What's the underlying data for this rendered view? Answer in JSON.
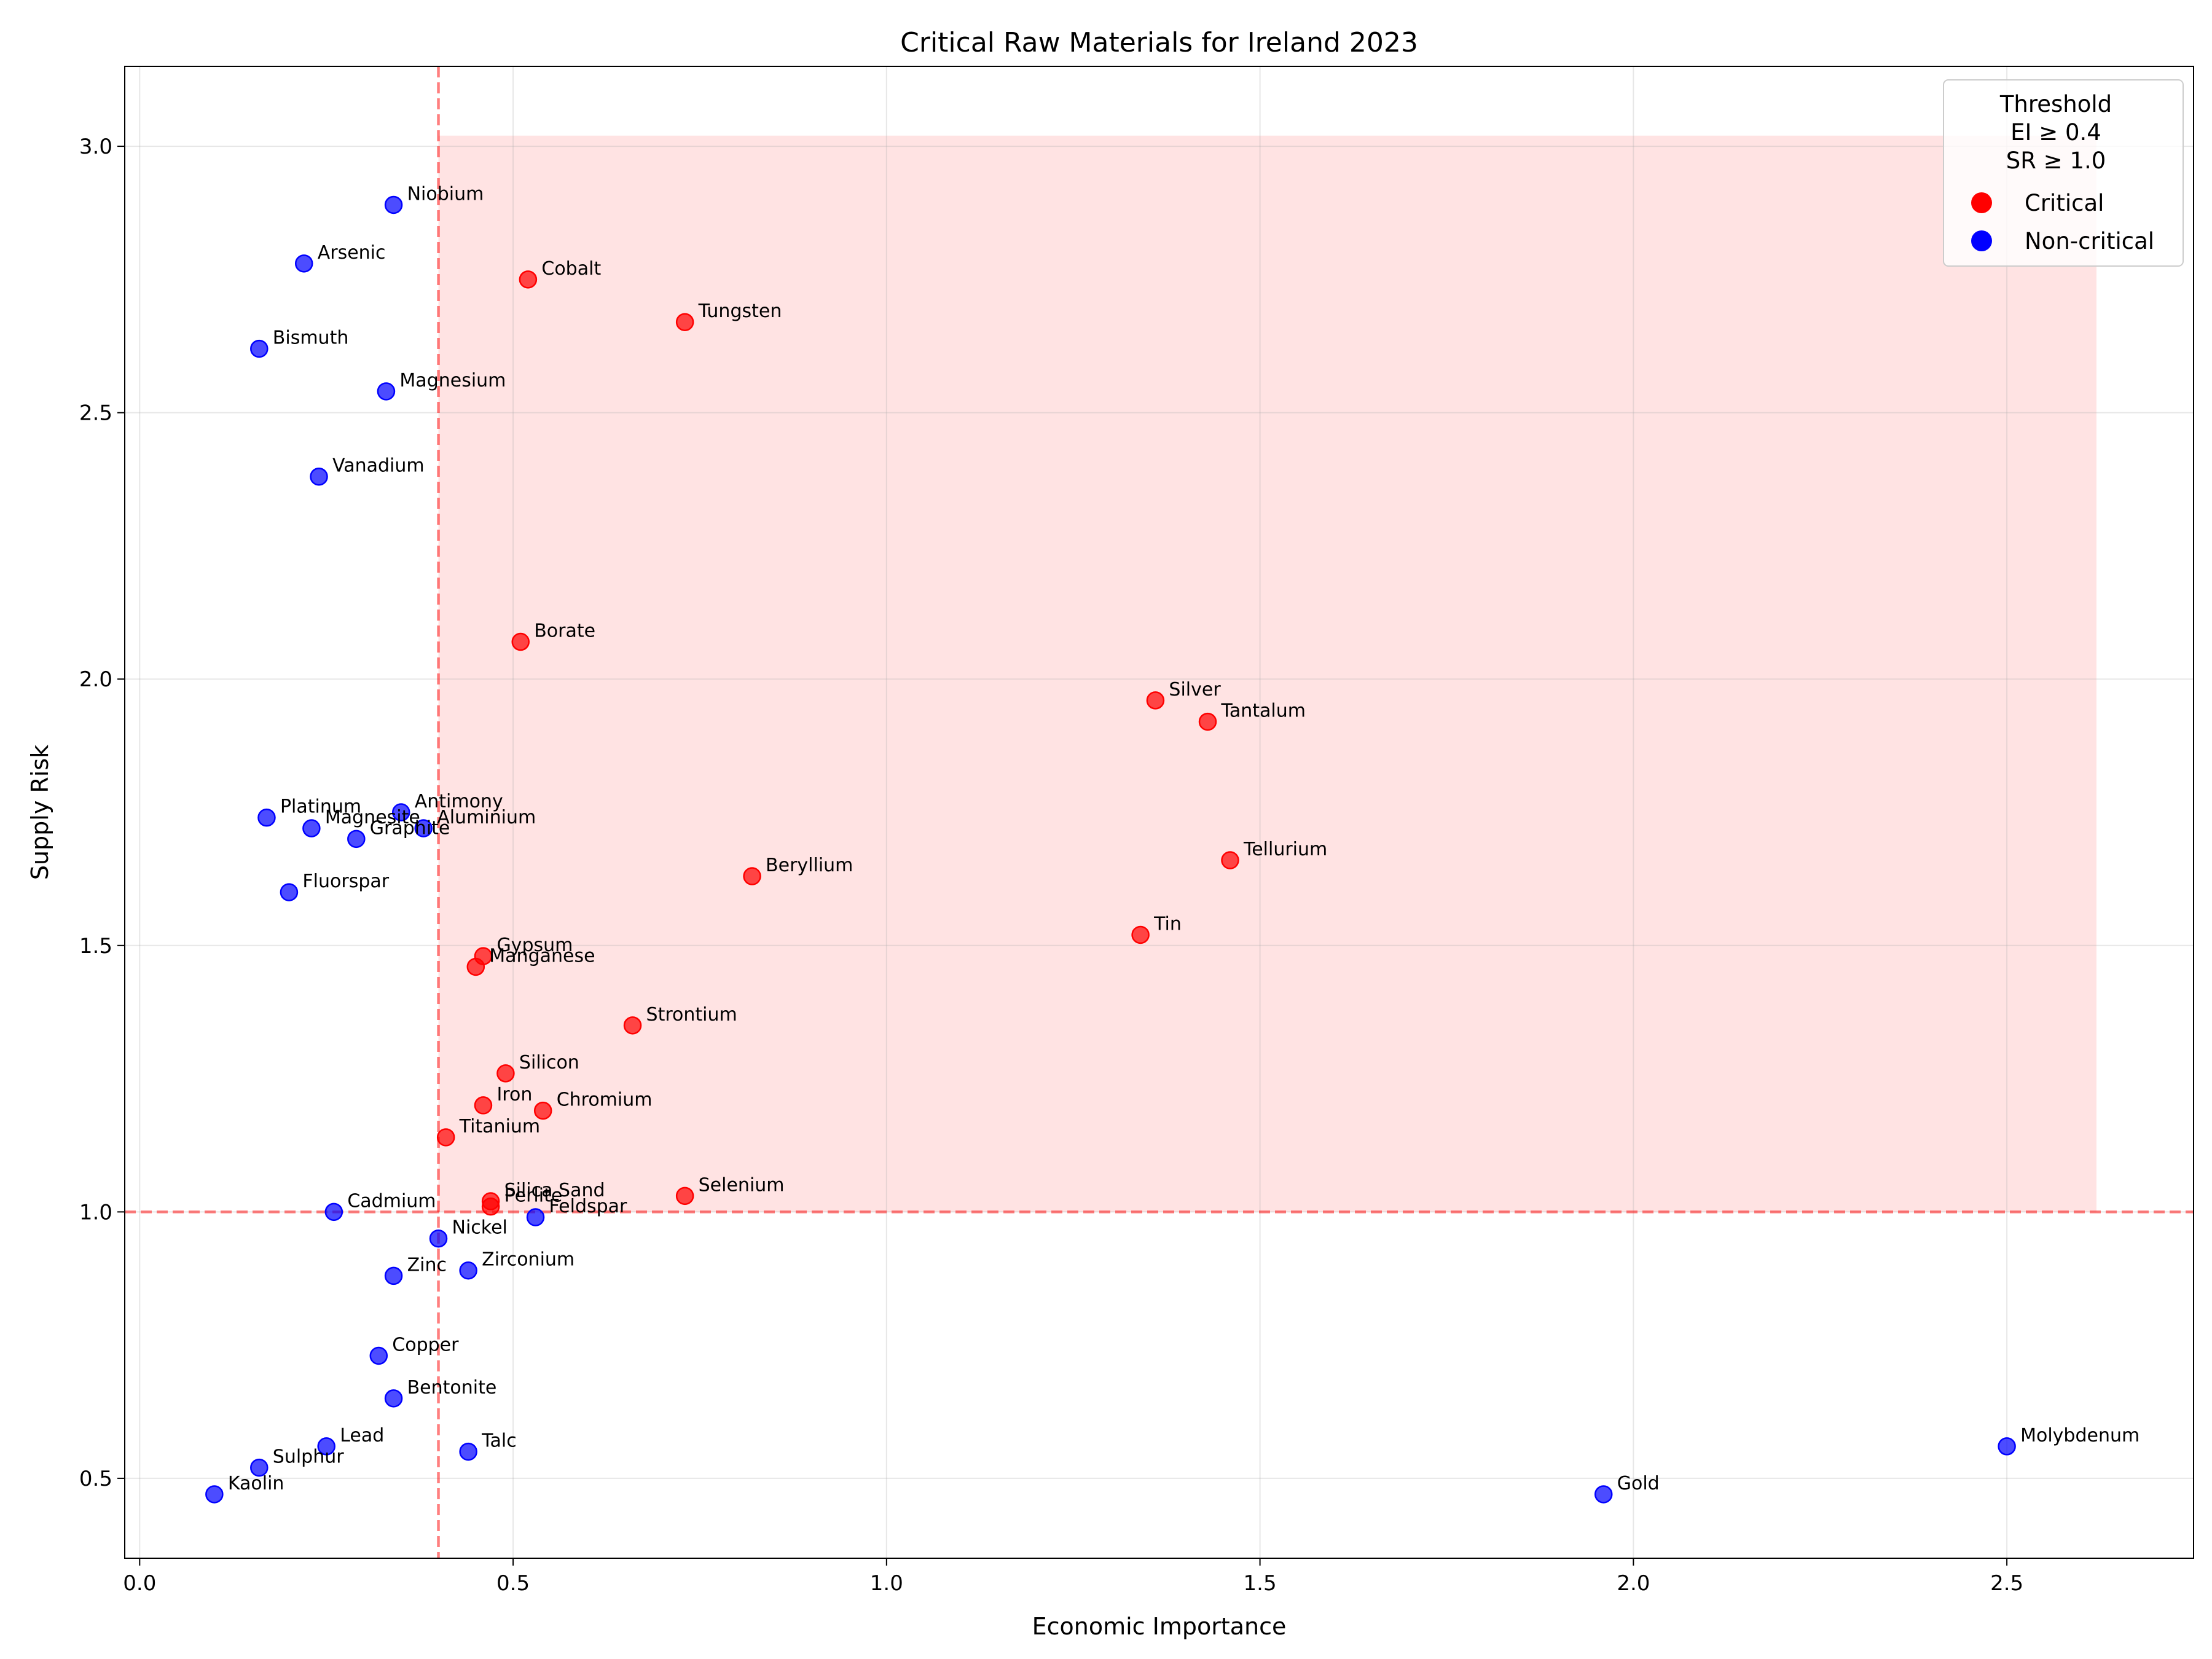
{
  "chart_data": {
    "type": "scatter",
    "title": "Critical Raw Materials for Ireland 2023",
    "xlabel": "Economic Importance",
    "ylabel": "Supply Risk",
    "xlim": [
      -0.02,
      2.75
    ],
    "ylim": [
      0.35,
      3.15
    ],
    "xticks": [
      0.0,
      0.5,
      1.0,
      1.5,
      2.0,
      2.5
    ],
    "xtick_labels": [
      "0.0",
      "0.5",
      "1.0",
      "1.5",
      "2.0",
      "2.5"
    ],
    "yticks": [
      0.5,
      1.0,
      1.5,
      2.0,
      2.5,
      3.0
    ],
    "ytick_labels": [
      "0.5",
      "1.0",
      "1.5",
      "2.0",
      "2.5",
      "3.0"
    ],
    "grid": true,
    "thresholds": {
      "ei": 0.4,
      "sr": 1.0
    },
    "critical_region": {
      "x": [
        0.4,
        2.62
      ],
      "y": [
        1.0,
        3.02
      ]
    },
    "legend": {
      "placement": "top-right",
      "title_lines": [
        "Threshold",
        "EI ≥ 0.4",
        "SR ≥ 1.0"
      ],
      "entries": [
        {
          "label": "Critical",
          "color": "#ff0000"
        },
        {
          "label": "Non-critical",
          "color": "#0000ff"
        }
      ]
    },
    "colors": {
      "critical": "#ff0000",
      "non_critical": "#0000ff",
      "region": "#ffcccc",
      "threshold": "#ff0000"
    },
    "points": [
      {
        "name": "Niobium",
        "x": 0.34,
        "y": 2.89,
        "critical": false
      },
      {
        "name": "Arsenic",
        "x": 0.22,
        "y": 2.78,
        "critical": false
      },
      {
        "name": "Cobalt",
        "x": 0.52,
        "y": 2.75,
        "critical": true
      },
      {
        "name": "Tungsten",
        "x": 0.73,
        "y": 2.67,
        "critical": true
      },
      {
        "name": "Bismuth",
        "x": 0.16,
        "y": 2.62,
        "critical": false
      },
      {
        "name": "Magnesium",
        "x": 0.33,
        "y": 2.54,
        "critical": false
      },
      {
        "name": "Vanadium",
        "x": 0.24,
        "y": 2.38,
        "critical": false
      },
      {
        "name": "Borate",
        "x": 0.51,
        "y": 2.07,
        "critical": true
      },
      {
        "name": "Silver",
        "x": 1.36,
        "y": 1.96,
        "critical": true
      },
      {
        "name": "Tantalum",
        "x": 1.43,
        "y": 1.92,
        "critical": true
      },
      {
        "name": "Platinum",
        "x": 0.17,
        "y": 1.74,
        "critical": false
      },
      {
        "name": "Antimony",
        "x": 0.35,
        "y": 1.75,
        "critical": false
      },
      {
        "name": "Magnesite",
        "x": 0.23,
        "y": 1.72,
        "critical": false
      },
      {
        "name": "Aluminium",
        "x": 0.38,
        "y": 1.72,
        "critical": false
      },
      {
        "name": "Graphite",
        "x": 0.29,
        "y": 1.7,
        "critical": false
      },
      {
        "name": "Tellurium",
        "x": 1.46,
        "y": 1.66,
        "critical": true
      },
      {
        "name": "Beryllium",
        "x": 0.82,
        "y": 1.63,
        "critical": true
      },
      {
        "name": "Fluorspar",
        "x": 0.2,
        "y": 1.6,
        "critical": false
      },
      {
        "name": "Tin",
        "x": 1.34,
        "y": 1.52,
        "critical": true
      },
      {
        "name": "Gypsum",
        "x": 0.46,
        "y": 1.48,
        "critical": true
      },
      {
        "name": "Manganese",
        "x": 0.45,
        "y": 1.46,
        "critical": true
      },
      {
        "name": "Strontium",
        "x": 0.66,
        "y": 1.35,
        "critical": true
      },
      {
        "name": "Silicon",
        "x": 0.49,
        "y": 1.26,
        "critical": true
      },
      {
        "name": "Iron",
        "x": 0.46,
        "y": 1.2,
        "critical": true
      },
      {
        "name": "Chromium",
        "x": 0.54,
        "y": 1.19,
        "critical": true
      },
      {
        "name": "Titanium",
        "x": 0.41,
        "y": 1.14,
        "critical": true
      },
      {
        "name": "Selenium",
        "x": 0.73,
        "y": 1.03,
        "critical": true
      },
      {
        "name": "Silica Sand",
        "x": 0.47,
        "y": 1.02,
        "critical": true
      },
      {
        "name": "Perlite",
        "x": 0.47,
        "y": 1.01,
        "critical": true
      },
      {
        "name": "Feldspar",
        "x": 0.53,
        "y": 0.99,
        "critical": false
      },
      {
        "name": "Cadmium",
        "x": 0.26,
        "y": 1.0,
        "critical": false
      },
      {
        "name": "Nickel",
        "x": 0.4,
        "y": 0.95,
        "critical": false
      },
      {
        "name": "Zirconium",
        "x": 0.44,
        "y": 0.89,
        "critical": false
      },
      {
        "name": "Zinc",
        "x": 0.34,
        "y": 0.88,
        "critical": false
      },
      {
        "name": "Copper",
        "x": 0.32,
        "y": 0.73,
        "critical": false
      },
      {
        "name": "Bentonite",
        "x": 0.34,
        "y": 0.65,
        "critical": false
      },
      {
        "name": "Lead",
        "x": 0.25,
        "y": 0.56,
        "critical": false
      },
      {
        "name": "Talc",
        "x": 0.44,
        "y": 0.55,
        "critical": false
      },
      {
        "name": "Sulphur",
        "x": 0.16,
        "y": 0.52,
        "critical": false
      },
      {
        "name": "Kaolin",
        "x": 0.1,
        "y": 0.47,
        "critical": false
      },
      {
        "name": "Gold",
        "x": 1.96,
        "y": 0.47,
        "critical": false
      },
      {
        "name": "Molybdenum",
        "x": 2.5,
        "y": 0.56,
        "critical": false
      }
    ]
  }
}
